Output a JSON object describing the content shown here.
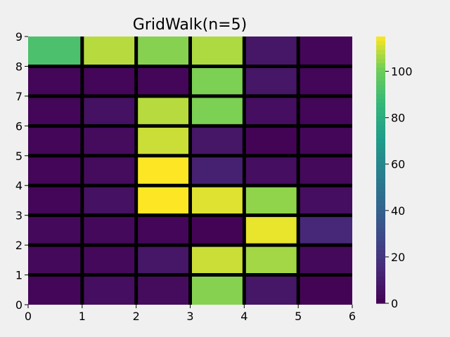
{
  "chart_data": {
    "type": "heatmap",
    "title": "GridWalk(n=5)",
    "xlabel": "",
    "ylabel": "",
    "xlim": [
      0,
      6
    ],
    "ylim": [
      0,
      9
    ],
    "x_ticks": [
      "0",
      "1",
      "2",
      "3",
      "4",
      "5",
      "6"
    ],
    "y_ticks": [
      "0",
      "1",
      "2",
      "3",
      "4",
      "5",
      "6",
      "7",
      "8",
      "9"
    ],
    "colormap": "viridis",
    "colorbar": {
      "min": 0,
      "max": 115,
      "ticks": [
        "0",
        "20",
        "40",
        "60",
        "80",
        "100"
      ]
    },
    "rows_bottom_to_top": [
      [
        2,
        5,
        4,
        103,
        8,
        1
      ],
      [
        3,
        3,
        8,
        110,
        106,
        3
      ],
      [
        3,
        3,
        2,
        1,
        113,
        15
      ],
      [
        2,
        6,
        115,
        112,
        104,
        5
      ],
      [
        2,
        4,
        115,
        12,
        5,
        3
      ],
      [
        2,
        4,
        110,
        8,
        1,
        2
      ],
      [
        2,
        6,
        108,
        102,
        5,
        2
      ],
      [
        2,
        2,
        2,
        102,
        8,
        2
      ],
      [
        92,
        108,
        103,
        107,
        8,
        2
      ]
    ]
  }
}
